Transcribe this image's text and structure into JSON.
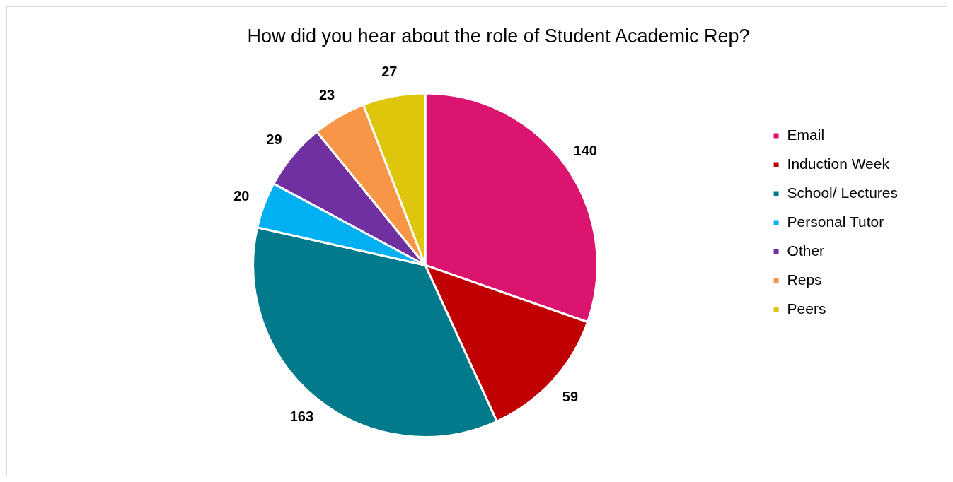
{
  "chart_data": {
    "type": "pie",
    "title": "How did you hear about the role of Student Academic Rep?",
    "categories": [
      "Email",
      "Induction Week",
      "School/ Lectures",
      "Personal Tutor",
      "Other",
      "Reps",
      "Peers"
    ],
    "values": [
      140,
      59,
      163,
      20,
      29,
      23,
      27
    ],
    "colors": [
      "#db1470",
      "#c00000",
      "#027a8c",
      "#00b0f0",
      "#7030a0",
      "#f79646",
      "#ddc60b"
    ],
    "legend": "right",
    "data_labels": true
  }
}
